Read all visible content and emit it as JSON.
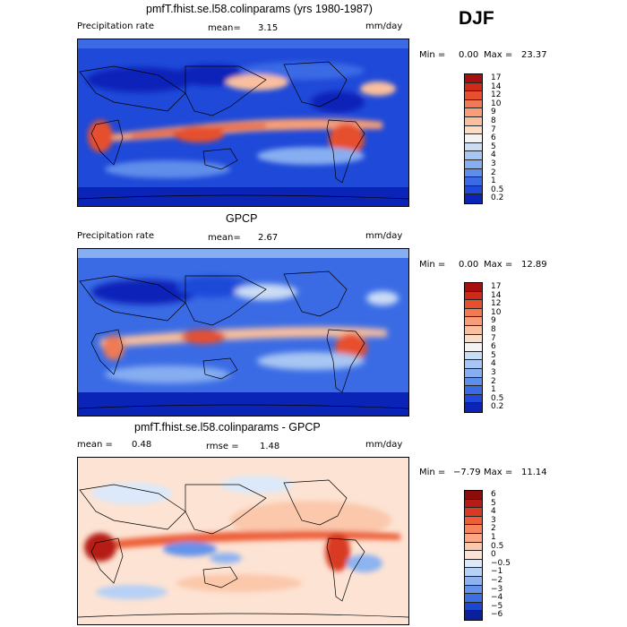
{
  "season": "DJF",
  "units_default": "mm/day",
  "panels": [
    {
      "title": "pmfT.fhist.se.l58.colinparams (yrs 1980-1987)",
      "variable": "Precipitation rate",
      "mean_label": "mean=",
      "mean_value": "3.15",
      "units": "mm/day",
      "min_label": "Min =",
      "min_value": "0.00",
      "max_label": "Max =",
      "max_value": "23.37",
      "levels": [
        "17",
        "14",
        "12",
        "10",
        "9",
        "8",
        "7",
        "6",
        "5",
        "4",
        "3",
        "2",
        "1",
        "0.5",
        "0.2"
      ],
      "colors": [
        "#a50f0f",
        "#cf2a18",
        "#e6502e",
        "#f07a52",
        "#f79e78",
        "#f9bf9e",
        "#fbdcc4",
        "#f3f3f3",
        "#cbdcf5",
        "#a8c6f3",
        "#86aef0",
        "#5e8dea",
        "#3a6be5",
        "#1f49d8",
        "#0a24b8"
      ]
    },
    {
      "title": "GPCP",
      "variable": "Precipitation rate",
      "mean_label": "mean=",
      "mean_value": "2.67",
      "units": "mm/day",
      "min_label": "Min =",
      "min_value": "0.00",
      "max_label": "Max =",
      "max_value": "12.89",
      "levels": [
        "17",
        "14",
        "12",
        "10",
        "9",
        "8",
        "7",
        "6",
        "5",
        "4",
        "3",
        "2",
        "1",
        "0.5",
        "0.2"
      ],
      "colors": [
        "#a50f0f",
        "#cf2a18",
        "#e6502e",
        "#f07a52",
        "#f79e78",
        "#f9bf9e",
        "#fbdcc4",
        "#f3f3f3",
        "#cbdcf5",
        "#a8c6f3",
        "#86aef0",
        "#5e8dea",
        "#3a6be5",
        "#1f49d8",
        "#0a24b8"
      ]
    },
    {
      "title": "pmfT.fhist.se.l58.colinparams - GPCP",
      "mean_label": "mean =",
      "mean_value": "0.48",
      "rmse_label": "rmse =",
      "rmse_value": "1.48",
      "units": "mm/day",
      "min_label": "Min =",
      "min_value": "−7.79",
      "max_label": "Max =",
      "max_value": "11.14",
      "levels": [
        "6",
        "5",
        "4",
        "3",
        "2",
        "1",
        "0.5",
        "0",
        "−0.5",
        "−1",
        "−2",
        "−3",
        "−4",
        "−5",
        "−6"
      ],
      "colors": [
        "#8c0c0c",
        "#b51d14",
        "#d93a22",
        "#ed5e38",
        "#f5835c",
        "#f9a784",
        "#fbc8ab",
        "#fde3d3",
        "#dbe9fa",
        "#b6d0f6",
        "#8db3f1",
        "#6592eb",
        "#3c6fe2",
        "#1d47d0",
        "#0a1f9c"
      ]
    }
  ]
}
